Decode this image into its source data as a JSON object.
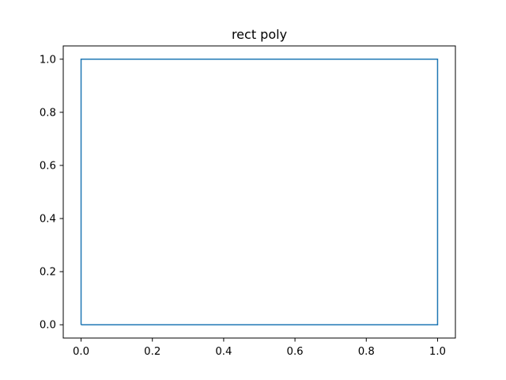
{
  "chart_data": {
    "type": "line",
    "title": "rect poly",
    "xlabel": "",
    "ylabel": "",
    "xlim": [
      -0.05,
      1.05
    ],
    "ylim": [
      -0.05,
      1.05
    ],
    "xticks": [
      0.0,
      0.2,
      0.4,
      0.6,
      0.8,
      1.0
    ],
    "xtick_labels": [
      "0.0",
      "0.2",
      "0.4",
      "0.6",
      "0.8",
      "1.0"
    ],
    "yticks": [
      0.0,
      0.2,
      0.4,
      0.6,
      0.8,
      1.0
    ],
    "ytick_labels": [
      "0.0",
      "0.2",
      "0.4",
      "0.6",
      "0.8",
      "1.0"
    ],
    "grid": false,
    "series": [
      {
        "color": "#1f77b4",
        "x": [
          0,
          1,
          1,
          0,
          0
        ],
        "y": [
          0,
          0,
          1,
          1,
          0
        ]
      }
    ]
  }
}
